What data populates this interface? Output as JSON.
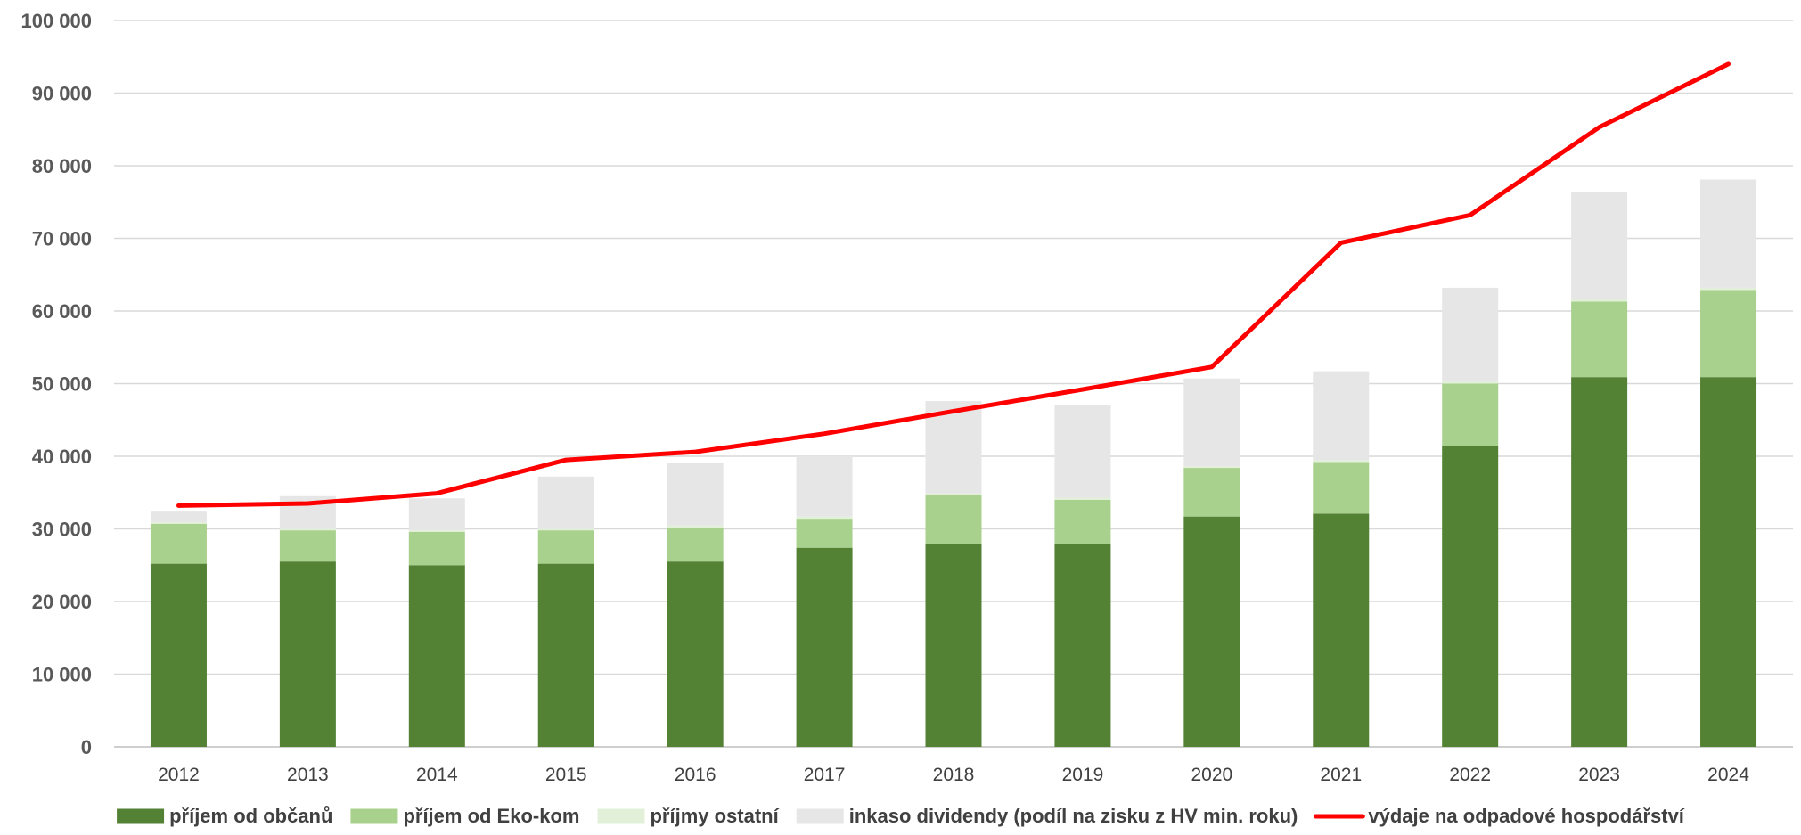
{
  "chart_data": {
    "type": "bar",
    "stacked": true,
    "categories": [
      "2012",
      "2013",
      "2014",
      "2015",
      "2016",
      "2017",
      "2018",
      "2019",
      "2020",
      "2021",
      "2022",
      "2023",
      "2024"
    ],
    "series": [
      {
        "name": "příjem od občanů",
        "type": "bar",
        "color": "#548235",
        "values": [
          25200,
          25500,
          25000,
          25200,
          25500,
          27400,
          27900,
          27900,
          31700,
          32100,
          41400,
          50900,
          50900
        ]
      },
      {
        "name": "příjem od Eko-kom",
        "type": "bar",
        "color": "#a9d18e",
        "values": [
          5500,
          4300,
          4600,
          4600,
          4700,
          4000,
          6700,
          6100,
          6700,
          7100,
          8600,
          10400,
          12000
        ]
      },
      {
        "name": "příjmy ostatní",
        "type": "bar",
        "color": "#e2f0d9",
        "values": [
          200,
          200,
          200,
          200,
          300,
          300,
          300,
          300,
          200,
          300,
          300,
          300,
          300
        ]
      },
      {
        "name": "inkaso dividendy (podíl na zisku z HV min. roku)",
        "type": "bar",
        "color": "#e7e6e6",
        "values": [
          1600,
          4500,
          4400,
          7200,
          8600,
          8300,
          12700,
          12700,
          12100,
          12200,
          12900,
          14800,
          14900
        ]
      },
      {
        "name": "výdaje na odpadové hospodářství",
        "type": "line",
        "color": "#ff0000",
        "values": [
          33200,
          33500,
          34900,
          39500,
          40600,
          43100,
          46200,
          49200,
          52300,
          69400,
          73200,
          85300,
          94000
        ]
      }
    ],
    "yticks": [
      "0",
      "10 000",
      "20 000",
      "30 000",
      "40 000",
      "50 000",
      "60 000",
      "70 000",
      "80 000",
      "90 000",
      "100 000"
    ],
    "ylim": [
      0,
      100000
    ],
    "grid": true,
    "legend_position": "bottom"
  }
}
